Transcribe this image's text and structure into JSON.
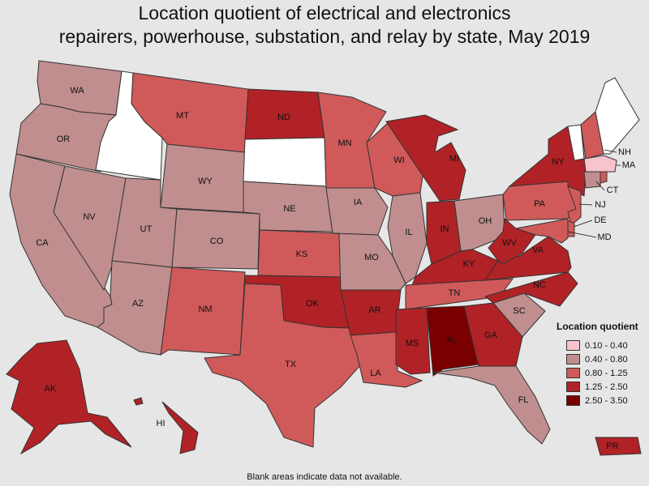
{
  "title": {
    "line1": "Location quotient of electrical and electronics",
    "line2": "repairers, powerhouse, substation, and relay by state, May 2019"
  },
  "legend": {
    "title": "Location quotient",
    "items": [
      {
        "label": "0.10 - 0.40",
        "color": "#f7c4cc"
      },
      {
        "label": "0.40 - 0.80",
        "color": "#c08e8e"
      },
      {
        "label": "0.80 - 1.25",
        "color": "#d05a5a"
      },
      {
        "label": "1.25 - 2.50",
        "color": "#b02226"
      },
      {
        "label": "2.50 - 3.50",
        "color": "#7a0000"
      }
    ]
  },
  "no_data_color": "#ffffff",
  "note": "Blank areas indicate data not available.",
  "states": [
    {
      "abbr": "WA",
      "category": "0.40 - 0.80"
    },
    {
      "abbr": "OR",
      "category": "0.40 - 0.80"
    },
    {
      "abbr": "CA",
      "category": "0.40 - 0.80"
    },
    {
      "abbr": "ID",
      "category": "no data"
    },
    {
      "abbr": "NV",
      "category": "0.40 - 0.80"
    },
    {
      "abbr": "MT",
      "category": "0.80 - 1.25"
    },
    {
      "abbr": "WY",
      "category": "0.40 - 0.80"
    },
    {
      "abbr": "UT",
      "category": "0.40 - 0.80"
    },
    {
      "abbr": "AZ",
      "category": "0.40 - 0.80"
    },
    {
      "abbr": "CO",
      "category": "0.40 - 0.80"
    },
    {
      "abbr": "NM",
      "category": "0.80 - 1.25"
    },
    {
      "abbr": "ND",
      "category": "1.25 - 2.50"
    },
    {
      "abbr": "SD",
      "category": "no data"
    },
    {
      "abbr": "NE",
      "category": "0.40 - 0.80"
    },
    {
      "abbr": "KS",
      "category": "0.80 - 1.25"
    },
    {
      "abbr": "OK",
      "category": "1.25 - 2.50"
    },
    {
      "abbr": "TX",
      "category": "0.80 - 1.25"
    },
    {
      "abbr": "MN",
      "category": "0.80 - 1.25"
    },
    {
      "abbr": "IA",
      "category": "0.40 - 0.80"
    },
    {
      "abbr": "MO",
      "category": "0.40 - 0.80"
    },
    {
      "abbr": "AR",
      "category": "1.25 - 2.50"
    },
    {
      "abbr": "LA",
      "category": "0.80 - 1.25"
    },
    {
      "abbr": "WI",
      "category": "0.80 - 1.25"
    },
    {
      "abbr": "IL",
      "category": "0.40 - 0.80"
    },
    {
      "abbr": "MI",
      "category": "1.25 - 2.50"
    },
    {
      "abbr": "IN",
      "category": "1.25 - 2.50"
    },
    {
      "abbr": "OH",
      "category": "0.40 - 0.80"
    },
    {
      "abbr": "KY",
      "category": "1.25 - 2.50"
    },
    {
      "abbr": "TN",
      "category": "0.80 - 1.25"
    },
    {
      "abbr": "MS",
      "category": "1.25 - 2.50"
    },
    {
      "abbr": "AL",
      "category": "2.50 - 3.50"
    },
    {
      "abbr": "GA",
      "category": "1.25 - 2.50"
    },
    {
      "abbr": "FL",
      "category": "0.40 - 0.80"
    },
    {
      "abbr": "SC",
      "category": "0.40 - 0.80"
    },
    {
      "abbr": "NC",
      "category": "1.25 - 2.50"
    },
    {
      "abbr": "VA",
      "category": "1.25 - 2.50"
    },
    {
      "abbr": "WV",
      "category": "1.25 - 2.50"
    },
    {
      "abbr": "PA",
      "category": "0.80 - 1.25"
    },
    {
      "abbr": "NY",
      "category": "1.25 - 2.50"
    },
    {
      "abbr": "NJ",
      "category": "0.80 - 1.25"
    },
    {
      "abbr": "DE",
      "category": "0.80 - 1.25"
    },
    {
      "abbr": "MD",
      "category": "0.80 - 1.25"
    },
    {
      "abbr": "VT",
      "category": "no data"
    },
    {
      "abbr": "NH",
      "category": "0.80 - 1.25"
    },
    {
      "abbr": "ME",
      "category": "no data"
    },
    {
      "abbr": "MA",
      "category": "0.10 - 0.40"
    },
    {
      "abbr": "CT",
      "category": "0.40 - 0.80"
    },
    {
      "abbr": "RI",
      "category": "0.80 - 1.25"
    },
    {
      "abbr": "AK",
      "category": "1.25 - 2.50"
    },
    {
      "abbr": "HI",
      "category": "1.25 - 2.50"
    },
    {
      "abbr": "PR",
      "category": "1.25 - 2.50"
    }
  ]
}
